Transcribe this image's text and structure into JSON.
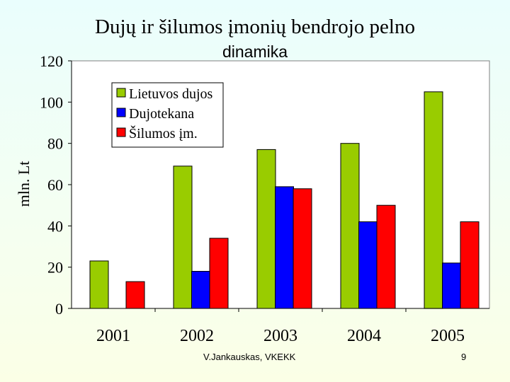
{
  "slide": {
    "title_line1": "Dujų ir šilumos įmonių bendrojo pelno",
    "title_line2": "dinamika",
    "footer_author": "V.Jankauskas, VKEKK",
    "page_number": "9"
  },
  "chart_data": {
    "type": "bar",
    "title": "Dujų ir šilumos įmonių bendrojo pelno dinamika",
    "ylabel": "mln. Lt",
    "xlabel": "",
    "categories": [
      "2001",
      "2002",
      "2003",
      "2004",
      "2005"
    ],
    "ylim": [
      0,
      120
    ],
    "yticks": [
      0,
      20,
      40,
      60,
      80,
      100,
      120
    ],
    "grid": false,
    "legend_position": "top-left",
    "series": [
      {
        "name": "Lietuvos dujos",
        "color": "#99cc00",
        "values": [
          23,
          69,
          77,
          80,
          105
        ]
      },
      {
        "name": "Dujotekana",
        "color": "#0000ff",
        "values": [
          0,
          18,
          59,
          42,
          22
        ]
      },
      {
        "name": "Šilumos įm.",
        "color": "#ff0000",
        "values": [
          13,
          34,
          58,
          50,
          42
        ]
      }
    ]
  }
}
